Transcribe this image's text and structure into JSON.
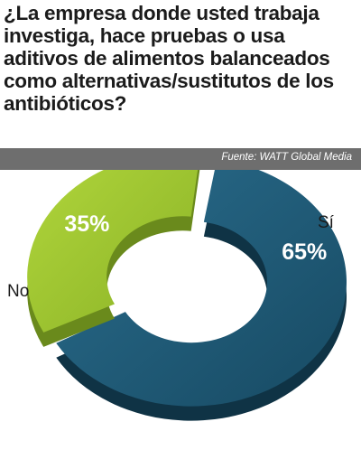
{
  "question": "¿La empresa donde usted trabaja investiga, hace pruebas o usa aditivos de alimentos balanceados como alternativas/sustitutos de los antibióticos?",
  "source": "Fuente: WATT Global Media",
  "colors": {
    "si": "#1e5a77",
    "no": "#9cc22f",
    "source_bar": "#6e6e6e"
  },
  "chart_data": {
    "type": "pie",
    "donut": true,
    "title": "¿La empresa donde usted trabaja investiga, hace pruebas o usa aditivos de alimentos balanceados como alternativas/sustitutos de los antibióticos?",
    "categories": [
      "Sí",
      "No"
    ],
    "values": [
      65,
      35
    ],
    "value_labels": [
      "65%",
      "35%"
    ],
    "unit": "%"
  }
}
